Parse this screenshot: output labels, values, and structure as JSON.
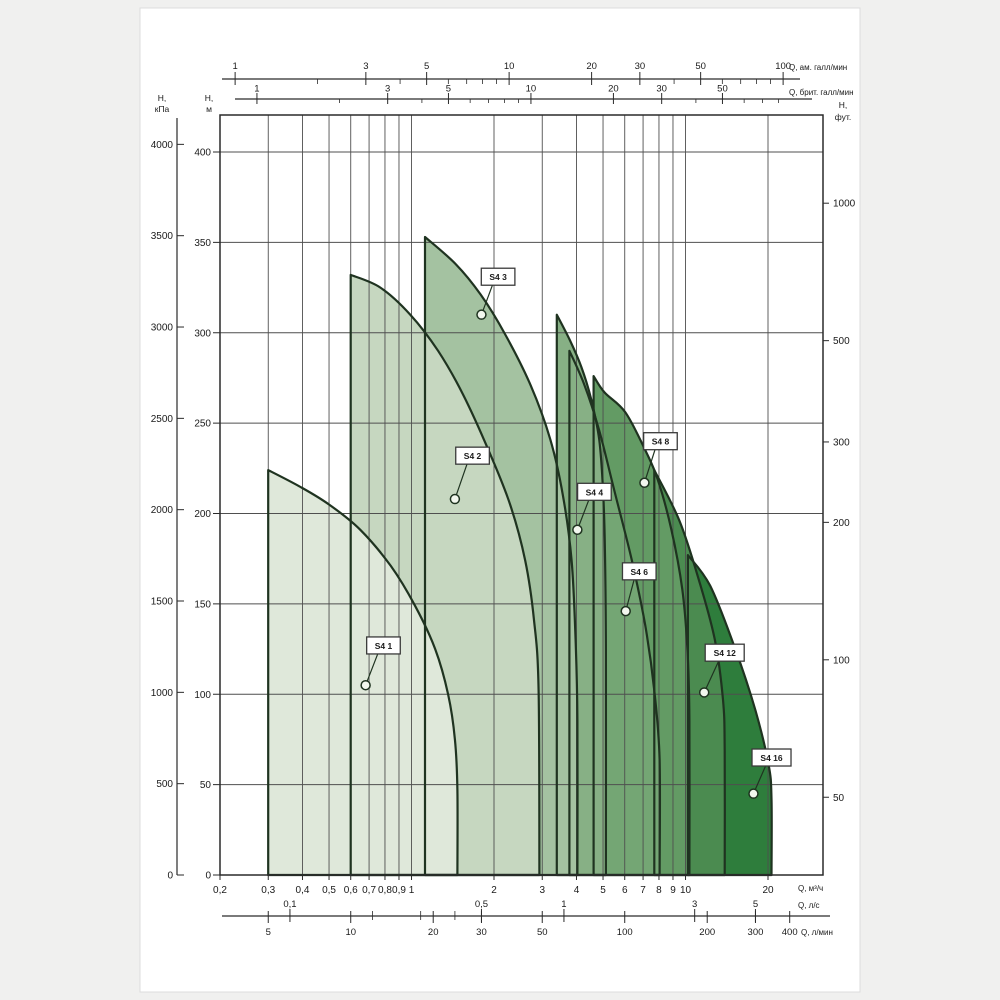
{
  "page": {
    "background": "#f0f0ef",
    "paper": "#ffffff",
    "paper_border": "#dcdcdc"
  },
  "chart_data": {
    "type": "area",
    "title": "",
    "description": "S4 borehole pump family coverage chart: head (H) versus flow (Q) envelopes for pumps S4 1 … S4 16",
    "x_scale": "log",
    "y_scale": "linear",
    "x_range_m3h": [
      0.2,
      33
    ],
    "y_range_m": [
      0,
      420
    ],
    "grid": {
      "x_m3h": [
        0.3,
        0.4,
        0.5,
        0.6,
        0.7,
        0.8,
        0.9,
        1,
        2,
        3,
        4,
        5,
        6,
        7,
        8,
        9,
        10,
        20
      ],
      "y_m": [
        50,
        100,
        150,
        200,
        250,
        300,
        350,
        400
      ]
    },
    "colors": {
      "grid": "#4f4f4f",
      "frame": "#2a2a2a",
      "curve": "#1f3320",
      "callout_border": "#3a3a3a",
      "callout_fill": "#ffffff",
      "dot_fill": "#f2f7ee"
    },
    "axes": {
      "top_us": {
        "unit": "Q, ам. галл/мин",
        "factor_to_m3h": 0.2271,
        "major": [
          1,
          3,
          5,
          10,
          20,
          30,
          50,
          100
        ],
        "minor": [
          2,
          4,
          6,
          7,
          8,
          9,
          40,
          60,
          70,
          80,
          90
        ]
      },
      "top_imp": {
        "unit": "Q, брит. галл/мин",
        "factor_to_m3h": 0.2728,
        "major": [
          1,
          3,
          5,
          10,
          20,
          30,
          50
        ],
        "minor": [
          2,
          4,
          6,
          7,
          8,
          9,
          40,
          60,
          70,
          80
        ]
      },
      "bottom_m3h": {
        "unit": "Q, м³/ч",
        "values": [
          0.2,
          0.3,
          0.4,
          0.5,
          0.6,
          0.7,
          0.8,
          0.9,
          1,
          2,
          3,
          4,
          5,
          6,
          7,
          8,
          9,
          10,
          20
        ],
        "labels": [
          "0,2",
          "0,3",
          "0,4",
          "0,5",
          "0,6",
          "0,7",
          "0,8",
          "0,9",
          "1",
          "2",
          "3",
          "4",
          "5",
          "6",
          "7",
          "8",
          "9",
          "10",
          "20"
        ]
      },
      "bottom_ls": {
        "unit": "Q, л/с",
        "factor_to_m3h": 3.6,
        "major_values": [
          0.1,
          0.5,
          1,
          3,
          5
        ],
        "major_labels": [
          "0,1",
          "0,5",
          "1",
          "3",
          "5"
        ],
        "minor": [
          0.2,
          0.3,
          0.4
        ]
      },
      "bottom_lmin": {
        "unit": "Q, л/мин",
        "factor_to_m3h": 0.06,
        "major": [
          5,
          10,
          20,
          30,
          50,
          100,
          200,
          300,
          400
        ]
      },
      "left_kpa": {
        "unit_lines": [
          "H,",
          "кПа"
        ],
        "ticks": [
          0,
          500,
          1000,
          1500,
          2000,
          2500,
          3000,
          3500,
          4000
        ]
      },
      "left_m": {
        "unit_lines": [
          "H,",
          "м"
        ],
        "ticks": [
          0,
          50,
          100,
          150,
          200,
          250,
          300,
          350,
          400
        ]
      },
      "right_ft": {
        "unit_lines": [
          "H,",
          "фут."
        ],
        "scale": "log",
        "ticks": [
          1000,
          500,
          300,
          200,
          100,
          50
        ]
      }
    },
    "pumps": [
      {
        "name": "S4 16",
        "color": "#2e7d3c",
        "curve": [
          [
            10.2,
            177
          ],
          [
            12.3,
            160
          ],
          [
            15.2,
            125
          ],
          [
            18.0,
            91
          ],
          [
            20.1,
            61
          ],
          [
            20.6,
            42
          ],
          [
            20.6,
            0
          ]
        ],
        "label_at": [
          20.6,
          65
        ],
        "dot_at": [
          17.7,
          45
        ]
      },
      {
        "name": "S4 12",
        "color": "#4b8b50",
        "curve": [
          [
            7.69,
            224
          ],
          [
            9.5,
            196
          ],
          [
            11.2,
            163
          ],
          [
            12.8,
            130
          ],
          [
            13.7,
            97
          ],
          [
            13.9,
            69
          ],
          [
            13.9,
            0
          ]
        ],
        "label_at": [
          13.9,
          123
        ],
        "dot_at": [
          11.7,
          101
        ]
      },
      {
        "name": "S4 8",
        "color": "#639b64",
        "curve": [
          [
            4.62,
            276
          ],
          [
            5.06,
            267
          ],
          [
            6.03,
            256
          ],
          [
            7.13,
            235
          ],
          [
            7.91,
            219
          ],
          [
            8.88,
            191
          ],
          [
            9.73,
            158
          ],
          [
            10.16,
            125
          ],
          [
            10.33,
            86
          ],
          [
            10.33,
            0
          ]
        ],
        "label_at": [
          8.1,
          240
        ],
        "dot_at": [
          7.08,
          217
        ]
      },
      {
        "name": "S4 6",
        "color": "#74a674",
        "curve": [
          [
            3.77,
            290
          ],
          [
            4.28,
            271
          ],
          [
            4.84,
            246
          ],
          [
            5.49,
            213
          ],
          [
            6.37,
            174
          ],
          [
            7.13,
            138
          ],
          [
            7.69,
            102
          ],
          [
            8.04,
            64
          ],
          [
            8.04,
            0
          ]
        ],
        "label_at": [
          6.78,
          168
        ],
        "dot_at": [
          6.05,
          146
        ]
      },
      {
        "name": "S4 4",
        "color": "#87b085",
        "curve": [
          [
            3.39,
            310
          ],
          [
            3.78,
            296
          ],
          [
            4.17,
            281
          ],
          [
            4.53,
            263
          ],
          [
            4.84,
            241
          ],
          [
            5.0,
            213
          ],
          [
            5.08,
            180
          ],
          [
            5.12,
            125
          ],
          [
            5.12,
            0
          ]
        ],
        "label_at": [
          4.65,
          212
        ],
        "dot_at": [
          4.03,
          191
        ]
      },
      {
        "name": "S4 3",
        "color": "#a4c2a1",
        "curve": [
          [
            1.12,
            353
          ],
          [
            1.45,
            338
          ],
          [
            1.79,
            321
          ],
          [
            2.2,
            299
          ],
          [
            2.72,
            271
          ],
          [
            3.21,
            241
          ],
          [
            3.57,
            210
          ],
          [
            3.84,
            174
          ],
          [
            3.97,
            130
          ],
          [
            4.03,
            86
          ],
          [
            4.03,
            0
          ]
        ],
        "label_at": [
          2.07,
          331
        ],
        "dot_at": [
          1.8,
          310
        ]
      },
      {
        "name": "S4 2",
        "color": "#c6d7c0",
        "curve": [
          [
            0.6,
            332
          ],
          [
            0.77,
            325
          ],
          [
            0.99,
            310
          ],
          [
            1.25,
            290
          ],
          [
            1.54,
            266
          ],
          [
            1.91,
            235
          ],
          [
            2.29,
            205
          ],
          [
            2.6,
            174
          ],
          [
            2.8,
            141
          ],
          [
            2.91,
            102
          ],
          [
            2.93,
            0
          ]
        ],
        "label_at": [
          1.67,
          232
        ],
        "dot_at": [
          1.44,
          208
        ]
      },
      {
        "name": "S4 1",
        "color": "#dfe8da",
        "curve": [
          [
            0.3,
            224
          ],
          [
            0.39,
            215
          ],
          [
            0.5,
            205
          ],
          [
            0.65,
            191
          ],
          [
            0.84,
            171
          ],
          [
            1.03,
            149
          ],
          [
            1.22,
            125
          ],
          [
            1.36,
            100
          ],
          [
            1.44,
            75
          ],
          [
            1.47,
            47
          ],
          [
            1.47,
            0
          ]
        ],
        "label_at": [
          0.79,
          127
        ],
        "dot_at": [
          0.68,
          105
        ]
      }
    ]
  }
}
